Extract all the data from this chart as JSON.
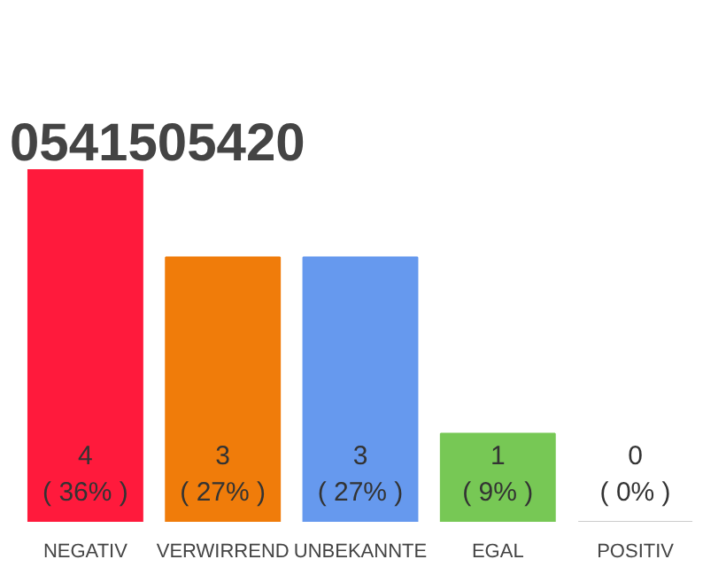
{
  "chart_data": {
    "type": "bar",
    "title": "0541505420",
    "categories": [
      "NEGATIV",
      "VERWIRREND",
      "UNBEKANNTE",
      "EGAL",
      "POSITIV"
    ],
    "values": [
      4,
      3,
      3,
      1,
      0
    ],
    "colors": [
      "#ff1a3c",
      "#f07c0a",
      "#6699ee",
      "#77c855",
      "#cccccc"
    ],
    "value_labels": [
      "4\n( 36% )",
      "3\n( 27% )",
      "3\n( 27% )",
      "1\n( 9% )",
      "0\n( 0% )"
    ],
    "ylim": [
      0,
      4
    ],
    "tick_labels": "x",
    "grid": false
  }
}
